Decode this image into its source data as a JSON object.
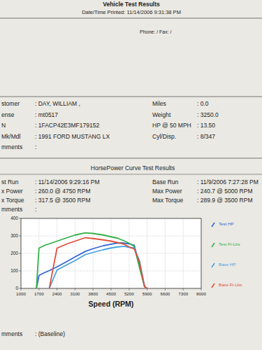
{
  "header": {
    "title": "Vehicle Test Results",
    "printed": "Date/Time Printed: 11/14/2006 9:31:38 PM",
    "contact": "Phone: /  Fax: /"
  },
  "vehicle": [
    [
      "stomer",
      ": DAY, WILLIAM ,",
      "Miles",
      ": 0.0"
    ],
    [
      "ense",
      ": mt0517",
      "Weight",
      ": 3250.0"
    ],
    [
      "N",
      ": 1FACP42E3MF179152",
      "HP @ 50 MPH",
      ": 13.50"
    ],
    [
      "Mk/Mdl",
      ": 1991 FORD MUSTANG LX",
      "Cyl/Disp.",
      ": 8/347"
    ],
    [
      "mments",
      ":"
    ]
  ],
  "section_title": "HorsePower Curve Test Results",
  "runs": [
    [
      "st Run",
      ": 11/14/2006 9:29:16 PM",
      "Base Run",
      ": 11/9/2006 7:27:28 PM"
    ],
    [
      "x Power",
      ": 260.0  @ 4750  RPM",
      "Max Power",
      ": 240.7  @ 5000  RPM"
    ],
    [
      "x Torque",
      ": 317.5  @ 3500  RPM",
      "Max Torque",
      ": 289.9  @ 3500  RPM"
    ],
    [
      "mments",
      ":"
    ]
  ],
  "chart_data": {
    "type": "line",
    "xlabel": "Speed (RPM)",
    "x": [
      1600,
      1700,
      1900,
      2100,
      2400,
      2800,
      3100,
      3500,
      3800,
      4200,
      4500,
      4750,
      5000,
      5200,
      5400,
      5600,
      5800,
      5900
    ],
    "series": [
      {
        "name": "Test HP",
        "color": "#3566d6",
        "values": [
          0,
          74,
          89,
          102,
          123,
          155,
          180,
          211.6,
          227,
          244,
          252.8,
          260,
          258.9,
          255,
          247,
          128,
          11,
          0
        ]
      },
      {
        "name": "Test Ft-Lbs",
        "color": "#35b04a",
        "values": [
          0,
          230,
          245,
          255,
          270,
          290,
          305,
          317.5,
          314,
          305,
          295,
          287,
          272,
          258,
          240,
          120,
          10,
          0
        ]
      },
      {
        "name": "Base HP",
        "color": "#45a2e2",
        "values": [
          null,
          null,
          null,
          0,
          105,
          136,
          159,
          193,
          206,
          221,
          231,
          237,
          240.7,
          235,
          231,
          160,
          11,
          0
        ]
      },
      {
        "name": "Base Ft-Lbs",
        "color": "#e0503a",
        "values": [
          null,
          null,
          null,
          0,
          230,
          255,
          270,
          289.9,
          285,
          277,
          270,
          262,
          252.8,
          237,
          225,
          150,
          10,
          0
        ]
      }
    ],
    "xlim": [
      1000,
      8000
    ],
    "xticks": [
      1000,
      1700,
      2400,
      3100,
      3800,
      4500,
      5200,
      5900,
      6600,
      7300,
      8000
    ],
    "ylim": [
      0,
      400
    ],
    "yticks": [
      0,
      100,
      200,
      300,
      400
    ],
    "grid": true,
    "legend": "right"
  },
  "footer": [
    "mments",
    ": (Baseline)"
  ]
}
